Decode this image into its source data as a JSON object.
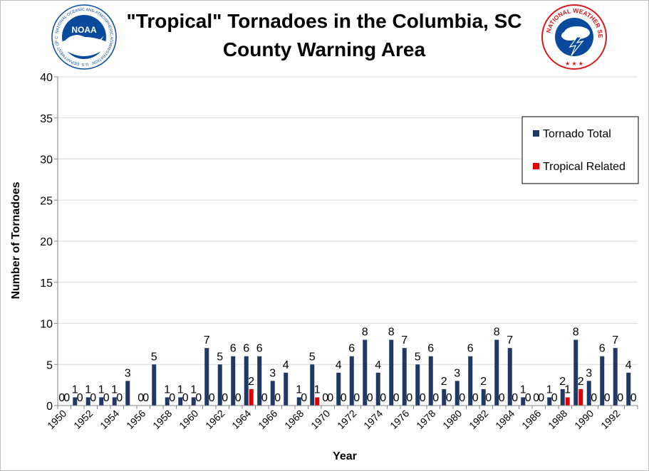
{
  "header": {
    "title_line1": "\"Tropical\" Tornadoes in the Columbia, SC",
    "title_line2": "County Warning Area",
    "logo_left_text": "NOAA",
    "logo_left_ring": "NATIONAL OCEANIC AND ATMOSPHERIC ADMINISTRATION · U.S. DEPARTMENT OF COMMERCE",
    "logo_right_ring": "NATIONAL WEATHER SERVICE"
  },
  "colors": {
    "tornado_total": "#1f3864",
    "tropical_related": "#e00000",
    "grid": "#d9d9d9",
    "noaa_blue": "#0a4a9c",
    "nws_red": "#d7191c"
  },
  "chart_data": {
    "type": "bar",
    "xlabel": "Year",
    "ylabel": "Number of Tornadoes",
    "ylim": [
      0,
      40
    ],
    "yticks": [
      0,
      5,
      10,
      15,
      20,
      25,
      30,
      35,
      40
    ],
    "grid": true,
    "legend_position": "top-right",
    "x_tick_labels": [
      "1950",
      "1952",
      "1954",
      "1956",
      "1958",
      "1960",
      "1962",
      "1964",
      "1966",
      "1968",
      "1970",
      "1972",
      "1974",
      "1976",
      "1978",
      "1980",
      "1982",
      "1984",
      "1986",
      "1988",
      "1990",
      "1992"
    ],
    "categories": [
      "1950",
      "1951",
      "1952",
      "1953",
      "1954",
      "1955",
      "1956",
      "1957",
      "1958",
      "1959",
      "1960",
      "1961",
      "1962",
      "1963",
      "1964",
      "1965",
      "1966",
      "1967",
      "1968",
      "1969",
      "1970",
      "1971",
      "1972",
      "1973",
      "1974",
      "1975",
      "1976",
      "1977",
      "1978",
      "1979",
      "1980",
      "1981",
      "1982",
      "1983",
      "1984",
      "1985",
      "1986",
      "1987",
      "1988",
      "1989",
      "1990",
      "1991",
      "1992",
      "1993"
    ],
    "series": [
      {
        "name": "Tornado Total",
        "values": [
          0,
          1,
          1,
          1,
          1,
          3,
          0,
          5,
          1,
          1,
          1,
          7,
          5,
          6,
          6,
          6,
          3,
          4,
          1,
          5,
          0,
          4,
          6,
          8,
          4,
          8,
          7,
          5,
          6,
          2,
          3,
          6,
          2,
          8,
          7,
          1,
          0,
          1,
          2,
          8,
          3,
          6,
          7,
          4
        ]
      },
      {
        "name": "Tropical Related",
        "values": [
          0,
          0,
          0,
          0,
          0,
          null,
          0,
          null,
          0,
          0,
          0,
          0,
          0,
          0,
          2,
          0,
          0,
          null,
          0,
          1,
          0,
          0,
          0,
          0,
          0,
          0,
          0,
          0,
          0,
          0,
          0,
          0,
          0,
          0,
          0,
          0,
          0,
          0,
          1,
          2,
          0,
          0,
          0,
          0
        ]
      }
    ]
  }
}
